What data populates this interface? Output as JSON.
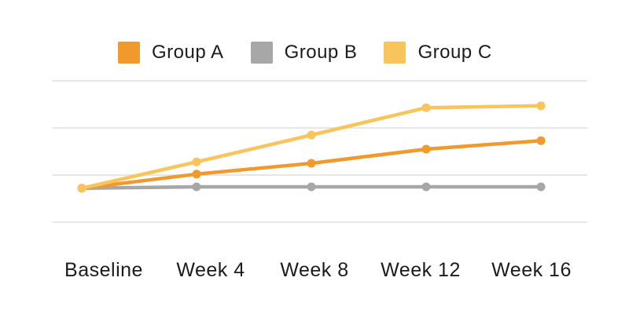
{
  "chart_data": {
    "type": "line",
    "title": "",
    "xlabel": "",
    "ylabel": "",
    "categories": [
      "Baseline",
      "Week 4",
      "Week 8",
      "Week 12",
      "Week 16"
    ],
    "series": [
      {
        "name": "Group A",
        "color": "#F0992D",
        "values": [
          0.72,
          1.02,
          1.25,
          1.55,
          1.73
        ]
      },
      {
        "name": "Group B",
        "color": "#A7A7A7",
        "values": [
          0.72,
          0.75,
          0.75,
          0.75,
          0.75
        ]
      },
      {
        "name": "Group C",
        "color": "#F8C45C",
        "values": [
          0.72,
          1.28,
          1.85,
          2.43,
          2.47
        ]
      }
    ],
    "ylim": [
      0,
      3
    ],
    "y_tick_labels_visible": false,
    "units": "unlabeled (values in gridline intervals above bottom gridline)",
    "grid": "horizontal",
    "gridline_count": 4,
    "legend_position": "top",
    "colors": {
      "grid": "#DEDEDE",
      "text": "#1C1C1C",
      "background": "#FFFFFF"
    }
  }
}
